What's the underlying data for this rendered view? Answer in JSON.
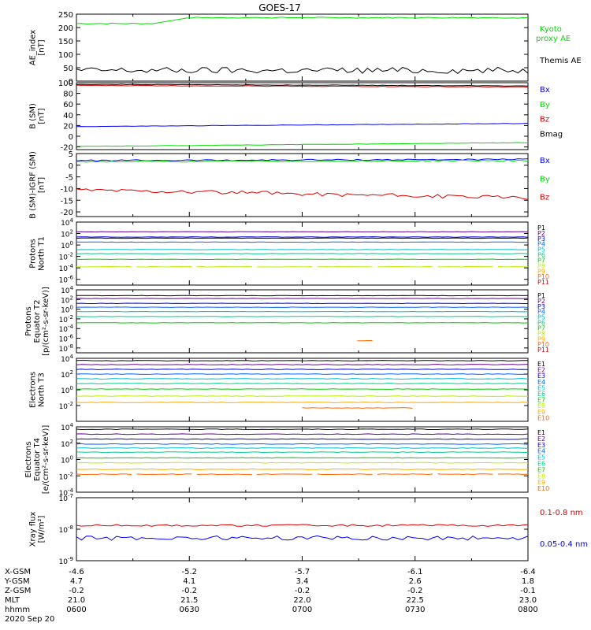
{
  "title": "GOES-17",
  "date": "2020 Sep 20",
  "footer": {
    "labels": [
      "X-GSM",
      "Y-GSM",
      "Z-GSM",
      "MLT",
      "hhmm"
    ],
    "columns": [
      {
        "x": "-4.6",
        "y": "4.7",
        "z": "-0.2",
        "mlt": "21.0",
        "hhmm": "0600"
      },
      {
        "x": "-5.2",
        "y": "4.1",
        "z": "-0.2",
        "mlt": "21.5",
        "hhmm": "0630"
      },
      {
        "x": "-5.7",
        "y": "3.4",
        "z": "-0.2",
        "mlt": "22.0",
        "hhmm": "0700"
      },
      {
        "x": "-6.1",
        "y": "2.6",
        "z": "-0.2",
        "mlt": "22.5",
        "hhmm": "0730"
      },
      {
        "x": "-6.4",
        "y": "1.8",
        "z": "-0.1",
        "mlt": "23.0",
        "hhmm": "0800"
      }
    ]
  },
  "colors": {
    "black": "#000000",
    "blue": "#0000ff",
    "green": "#00dd00",
    "red": "#dd0000",
    "p": [
      "#000000",
      "#6a0090",
      "#0000dd",
      "#0066ff",
      "#00bbcc",
      "#00cc88",
      "#00cc00",
      "#bbee00",
      "#ffaa00",
      "#ff6600",
      "#dd0000",
      "#990000"
    ]
  },
  "chart_data": [
    {
      "type": "line",
      "panel": "ae",
      "ylabel": "AE_index\n[nT]",
      "ylim": [
        0,
        250
      ],
      "ticks": [
        "250",
        "200",
        "150",
        "100",
        "50",
        "0"
      ],
      "series": [
        {
          "name": "Kyoto proxy AE",
          "color": "#00dd00",
          "baseline": 215,
          "jitter": 2,
          "rise_to": 237,
          "rise_at": 0.25
        },
        {
          "name": "Themis AE",
          "color": "#000000",
          "baseline": 40,
          "jitter": 12
        }
      ]
    },
    {
      "type": "line",
      "panel": "bsm",
      "ylabel": "B (SM)\n[nT]",
      "ylim": [
        -25,
        100
      ],
      "ticks": [
        "100",
        "80",
        "60",
        "40",
        "20",
        "0",
        "-20"
      ],
      "series": [
        {
          "name": "Bx",
          "color": "#0000ff",
          "from": 18,
          "to": 24,
          "jitter": 0.4
        },
        {
          "name": "By",
          "color": "#00dd00",
          "from": -19,
          "to": -12,
          "jitter": 0.4
        },
        {
          "name": "Bz",
          "color": "#dd0000",
          "from": 95,
          "to": 92,
          "jitter": 0.6
        },
        {
          "name": "Bmag",
          "color": "#000000",
          "from": 97,
          "to": 94,
          "jitter": 0.5
        }
      ]
    },
    {
      "type": "line",
      "panel": "bigrf",
      "ylabel": "B (SM)-IGRF (SM)\n[nT]",
      "ylim": [
        -22,
        5
      ],
      "ticks": [
        "5",
        "0",
        "-5",
        "-10",
        "-15",
        "-20"
      ],
      "series": [
        {
          "name": "Bx",
          "color": "#0000ff",
          "from": 2,
          "to": 2.5,
          "jitter": 0.3
        },
        {
          "name": "By",
          "color": "#00dd00",
          "from": 1.5,
          "to": 2,
          "jitter": 0.3
        },
        {
          "name": "Bz",
          "color": "#dd0000",
          "from": -10.5,
          "to": -14,
          "jitter": 0.8
        }
      ]
    },
    {
      "type": "line",
      "panel": "pn",
      "ylabel": "Protons\nNorth T1",
      "log": true,
      "ylim_exp": [
        -7,
        4
      ],
      "ticks": [
        "10^4",
        "10^2",
        "10^0",
        "10^-2",
        "10^-4",
        "10^-6"
      ],
      "series": [
        {
          "name": "P1",
          "logv": 1.2
        },
        {
          "name": "P2",
          "logv": 2.3
        },
        {
          "name": "P3",
          "logv": 1.4
        },
        {
          "name": "P4",
          "logv": 0.5
        },
        {
          "name": "P5",
          "logv": -0.8
        },
        {
          "name": "P6",
          "logv": -1.5
        },
        {
          "name": "P7",
          "logv": -2.5
        },
        {
          "name": "P8",
          "logv": -3.8,
          "gaps": true
        },
        {
          "name": "P9"
        },
        {
          "name": "P10"
        },
        {
          "name": "P11"
        }
      ]
    },
    {
      "type": "line",
      "panel": "pe",
      "ylabel": "Protons\nEquator T2\n[p/(cm²-s-sr-keV)]",
      "log": true,
      "ylim_exp": [
        -9,
        4
      ],
      "ticks": [
        "10^4",
        "10^2",
        "10^0",
        "10^-2",
        "10^-4",
        "10^-6",
        "10^-8"
      ],
      "series": [
        {
          "name": "P1",
          "logv": 2.8
        },
        {
          "name": "P2",
          "logv": 2.2
        },
        {
          "name": "P3",
          "logv": 1.2
        },
        {
          "name": "P4",
          "logv": 0.4
        },
        {
          "name": "P5",
          "logv": -0.5
        },
        {
          "name": "P6",
          "logv": -1.5
        },
        {
          "name": "P7",
          "logv": -2.8
        },
        {
          "name": "P8"
        },
        {
          "name": "P9"
        },
        {
          "name": "P10",
          "logv": -6.5,
          "segment": [
            0.62,
            0.66
          ]
        },
        {
          "name": "P11"
        }
      ]
    },
    {
      "type": "line",
      "panel": "en",
      "ylabel": "Electrons\nNorth T3",
      "log": true,
      "ylim_exp": [
        -4,
        4
      ],
      "ticks": [
        "10^4",
        "10^2",
        "10^0",
        "10^-2"
      ],
      "series": [
        {
          "name": "E1",
          "logv": 3.7
        },
        {
          "name": "E2",
          "logv": 3.2
        },
        {
          "name": "E3",
          "logv": 2.6
        },
        {
          "name": "E4",
          "logv": 2.0
        },
        {
          "name": "E5",
          "logv": 1.4
        },
        {
          "name": "E6",
          "logv": 0.8
        },
        {
          "name": "E7",
          "logv": 0.1
        },
        {
          "name": "E8",
          "logv": -0.8
        },
        {
          "name": "E9",
          "logv": -1.6
        },
        {
          "name": "E10",
          "logv": -2.3,
          "segment": [
            0.5,
            0.75
          ]
        }
      ]
    },
    {
      "type": "line",
      "panel": "ee",
      "ylabel": "Electrons\nEquator T4\n[e/(cm²-s-sr-keV)]",
      "log": true,
      "ylim_exp": [
        -4,
        4
      ],
      "ticks": [
        "10^4",
        "10^2",
        "10^0",
        "10^-2",
        "10^-4"
      ],
      "series": [
        {
          "name": "E1",
          "logv": 3.7
        },
        {
          "name": "E2",
          "logv": 3.1
        },
        {
          "name": "E3",
          "logv": 2.5
        },
        {
          "name": "E4",
          "logv": 1.9
        },
        {
          "name": "E5",
          "logv": 1.4
        },
        {
          "name": "E6",
          "logv": 0.9
        },
        {
          "name": "E7",
          "logv": 0.2
        },
        {
          "name": "E8",
          "logv": -0.4
        },
        {
          "name": "E9",
          "logv": -1.2
        },
        {
          "name": "E10",
          "logv": -1.8,
          "gaps": true
        }
      ]
    },
    {
      "type": "line",
      "panel": "xray",
      "ylabel": "Xray flux\n[W/m²]",
      "log": true,
      "ylim_exp": [
        -9,
        -7
      ],
      "ticks": [
        "10^-7",
        "10^-8",
        "10^-9"
      ],
      "series": [
        {
          "name": "0.1-0.8 nm",
          "color": "#dd0000",
          "logv": -7.88,
          "jitter": 0.03
        },
        {
          "name": "0.05-0.4 nm",
          "color": "#0000ff",
          "logv": -8.28,
          "jitter": 0.07
        }
      ]
    }
  ]
}
